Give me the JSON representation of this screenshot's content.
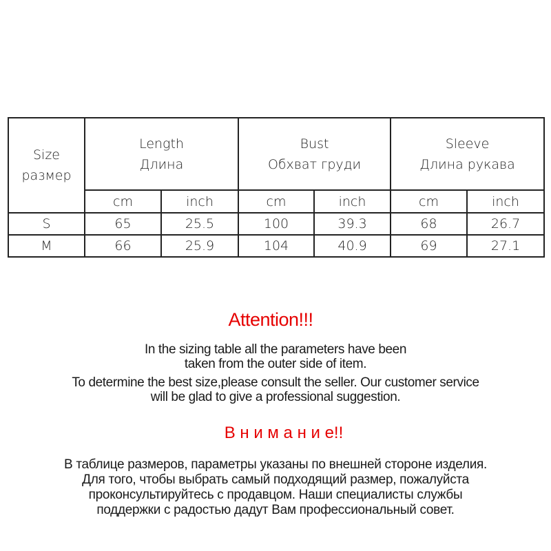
{
  "table": {
    "size_header": [
      "Size",
      "размер"
    ],
    "groups": [
      {
        "en": "Length",
        "ru": "Длина"
      },
      {
        "en": "Bust",
        "ru": "Обхват груди"
      },
      {
        "en": "Sleeve",
        "ru": "Длина рукава"
      }
    ],
    "units": [
      "cm",
      "inch",
      "cm",
      "inch",
      "cm",
      "inch"
    ],
    "rows": [
      {
        "size": "S",
        "values": [
          "65",
          "25.5",
          "100",
          "39.3",
          "68",
          "26.7"
        ]
      },
      {
        "size": "M",
        "values": [
          "66",
          "25.9",
          "104",
          "40.9",
          "69",
          "27.1"
        ]
      }
    ]
  },
  "notice_en": {
    "title": "Attention!!!",
    "lines": [
      "In the sizing table all the parameters have been",
      "taken from the outer side of item.",
      "To determine the best size,please consult the seller. Our customer service",
      "will be glad to give a professional suggestion."
    ]
  },
  "notice_ru": {
    "title": "В н и м а н и е!!",
    "lines": [
      "В таблице размеров, параметры указаны по внешней стороне изделия.",
      "Для того, чтобы выбрать самый подходящий размер, пожалуйста",
      "проконсультируйтесь с продавцом. Наши специалисты службы",
      "поддержки с радостью дадут Вам профессиональный совет."
    ]
  },
  "colors": {
    "accent": "#e60000",
    "text": "#1a1a1a",
    "border": "#222222"
  }
}
